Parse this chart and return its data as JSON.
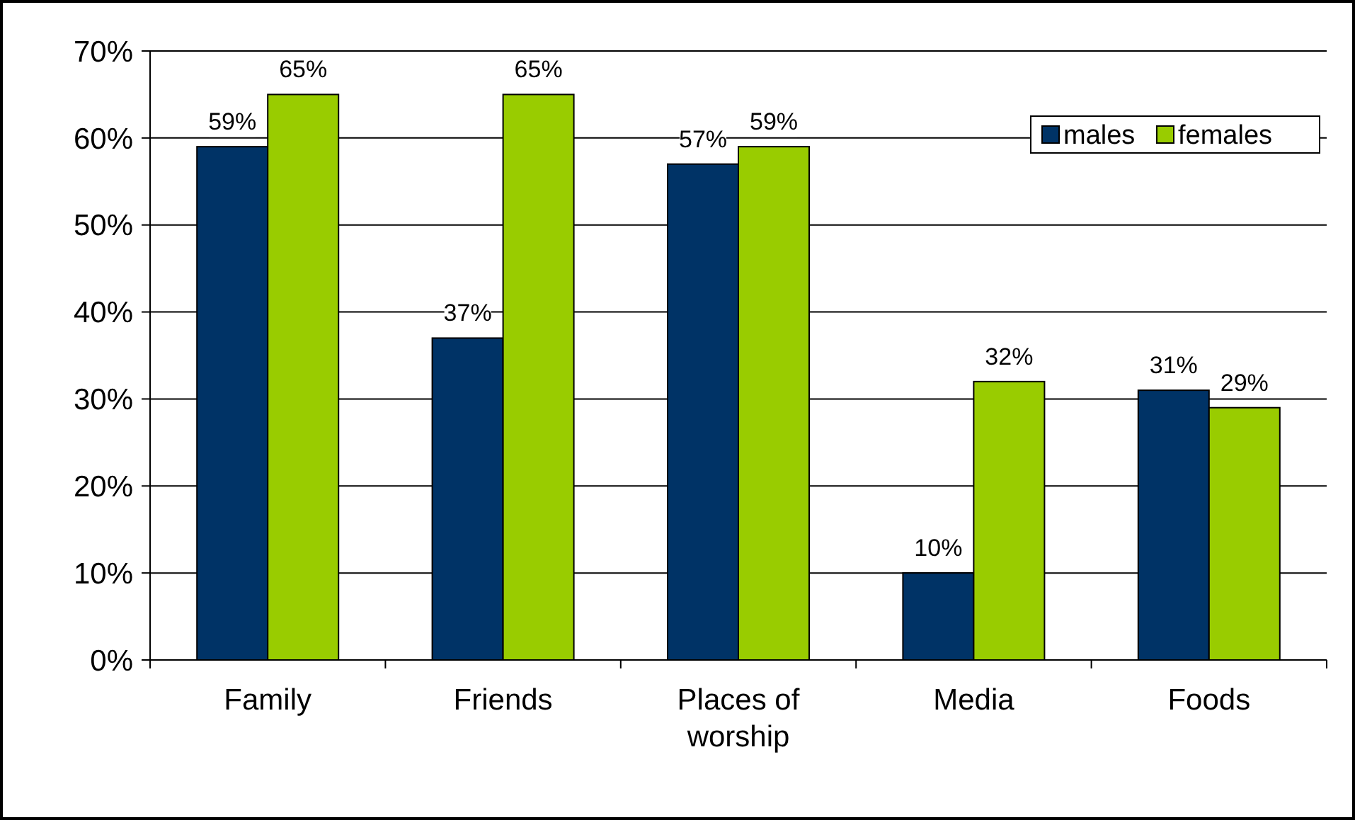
{
  "chart_data": {
    "type": "bar",
    "categories": [
      "Family",
      "Friends",
      "Places of worship",
      "Media",
      "Foods"
    ],
    "series": [
      {
        "name": "males",
        "color": "#003366",
        "values": [
          59,
          37,
          57,
          10,
          31
        ],
        "value_labels": [
          "59%",
          "37%",
          "57%",
          "10%",
          "31%"
        ]
      },
      {
        "name": "females",
        "color": "#99cc00",
        "values": [
          65,
          65,
          59,
          32,
          29
        ],
        "value_labels": [
          "65%",
          "65%",
          "59%",
          "32%",
          "29%"
        ]
      }
    ],
    "ylim": [
      0,
      70
    ],
    "yticks": [
      {
        "value": 0,
        "label": "0%"
      },
      {
        "value": 10,
        "label": "10%"
      },
      {
        "value": 20,
        "label": "20%"
      },
      {
        "value": 30,
        "label": "30%"
      },
      {
        "value": 40,
        "label": "40%"
      },
      {
        "value": 50,
        "label": "50%"
      },
      {
        "value": 60,
        "label": "60%"
      },
      {
        "value": 70,
        "label": "70%"
      }
    ],
    "grid": "y",
    "legend": "top right"
  }
}
